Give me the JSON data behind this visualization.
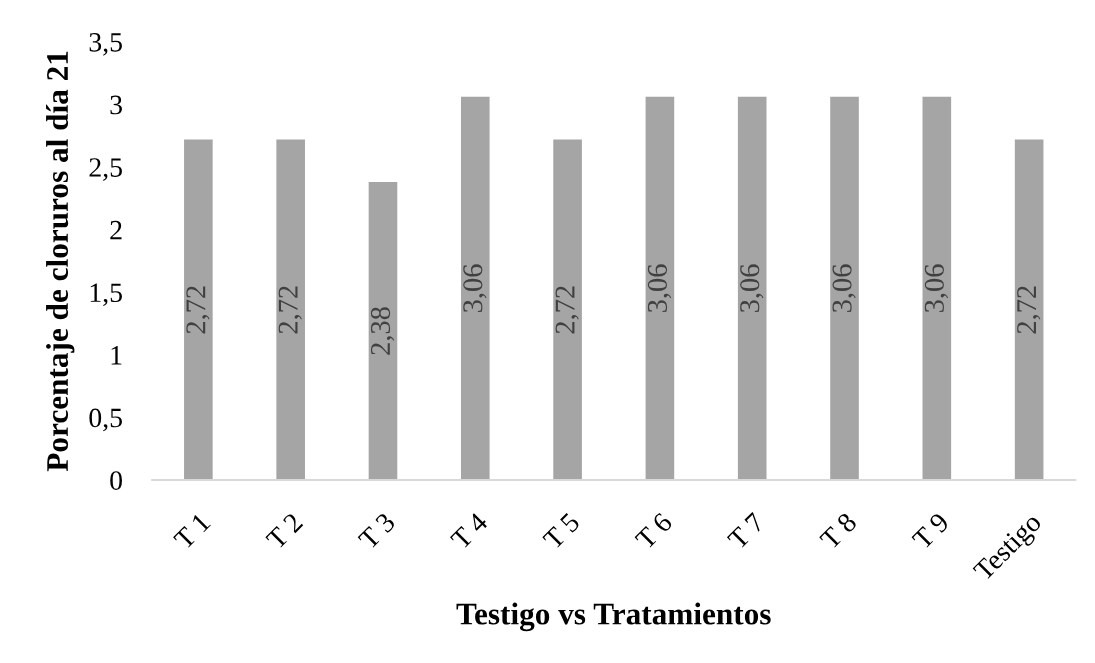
{
  "chart_data": {
    "type": "bar",
    "xlabel": "Testigo vs Tratamientos",
    "ylabel": "Porcentaje de cloruros al día 21",
    "categories": [
      "T 1",
      "T 2",
      "T 3",
      "T 4",
      "T 5",
      "T 6",
      "T 7",
      "T 8",
      "T 9",
      "Testigo"
    ],
    "values": [
      2.72,
      2.72,
      2.38,
      3.06,
      2.72,
      3.06,
      3.06,
      3.06,
      3.06,
      2.72
    ],
    "value_labels": [
      "2,72",
      "2,72",
      "2,38",
      "3,06",
      "2,72",
      "3,06",
      "3,06",
      "3,06",
      "3,06",
      "2,72"
    ],
    "color": "#a5a5a5",
    "ylim": [
      0,
      3.5
    ],
    "yticks": [
      0,
      {
        "value": 0.5,
        "label": "0,5"
      },
      1,
      {
        "value": 1.5,
        "label": "1,5"
      },
      2,
      {
        "value": 2.5,
        "label": "2,5"
      },
      3,
      {
        "value": 3.5,
        "label": "3,5"
      }
    ],
    "grid": false,
    "legend": false
  }
}
